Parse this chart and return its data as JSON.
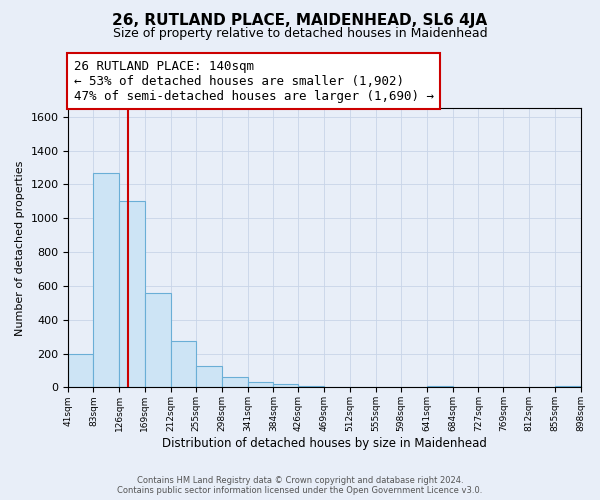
{
  "title": "26, RUTLAND PLACE, MAIDENHEAD, SL6 4JA",
  "subtitle": "Size of property relative to detached houses in Maidenhead",
  "xlabel": "Distribution of detached houses by size in Maidenhead",
  "ylabel": "Number of detached properties",
  "footer_line1": "Contains HM Land Registry data © Crown copyright and database right 2024.",
  "footer_line2": "Contains public sector information licensed under the Open Government Licence v3.0.",
  "bar_edges": [
    41,
    83,
    126,
    169,
    212,
    255,
    298,
    341,
    384,
    426,
    469,
    512,
    555,
    598,
    641,
    684,
    727,
    769,
    812,
    855,
    898
  ],
  "bar_heights": [
    200,
    1270,
    1100,
    560,
    275,
    125,
    60,
    30,
    20,
    10,
    0,
    0,
    0,
    0,
    10,
    0,
    0,
    0,
    0,
    10
  ],
  "bar_color": "#cde4f5",
  "bar_edge_color": "#6aaed6",
  "red_line_x": 140,
  "annotation_line1": "26 RUTLAND PLACE: 140sqm",
  "annotation_line2": "← 53% of detached houses are smaller (1,902)",
  "annotation_line3": "47% of semi-detached houses are larger (1,690) →",
  "annotation_box_color": "#ffffff",
  "annotation_box_edge": "#cc0000",
  "ylim": [
    0,
    1650
  ],
  "yticks": [
    0,
    200,
    400,
    600,
    800,
    1000,
    1200,
    1400,
    1600
  ],
  "xtick_labels": [
    "41sqm",
    "83sqm",
    "126sqm",
    "169sqm",
    "212sqm",
    "255sqm",
    "298sqm",
    "341sqm",
    "384sqm",
    "426sqm",
    "469sqm",
    "512sqm",
    "555sqm",
    "598sqm",
    "641sqm",
    "684sqm",
    "727sqm",
    "769sqm",
    "812sqm",
    "855sqm",
    "898sqm"
  ],
  "grid_color": "#c8d4e8",
  "background_color": "#e8eef8",
  "title_fontsize": 11,
  "subtitle_fontsize": 9,
  "annotation_fontsize": 9
}
